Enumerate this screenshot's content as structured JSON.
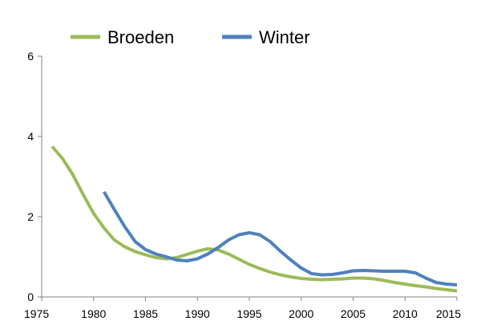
{
  "chart_data": {
    "type": "line",
    "title": "",
    "xlabel": "",
    "ylabel": "",
    "xlim": [
      1975,
      2015
    ],
    "ylim": [
      0,
      6
    ],
    "x_ticks": [
      "1975",
      "1980",
      "1985",
      "1990",
      "1995",
      "2000",
      "2005",
      "2010",
      "2015"
    ],
    "y_ticks": [
      "0",
      "2",
      "4",
      "6"
    ],
    "grid": false,
    "legend_position": "top",
    "series": [
      {
        "name": "Broeden",
        "color": "#9BBB59",
        "x": [
          1976,
          1977,
          1978,
          1979,
          1980,
          1981,
          1982,
          1983,
          1984,
          1985,
          1986,
          1987,
          1988,
          1989,
          1990,
          1991,
          1992,
          1993,
          1994,
          1995,
          1996,
          1997,
          1998,
          1999,
          2000,
          2001,
          2002,
          2003,
          2004,
          2005,
          2006,
          2007,
          2008,
          2009,
          2010,
          2011,
          2012,
          2013,
          2014,
          2015
        ],
        "y": [
          3.75,
          3.45,
          3.05,
          2.55,
          2.08,
          1.72,
          1.42,
          1.25,
          1.13,
          1.05,
          0.98,
          0.95,
          0.98,
          1.06,
          1.14,
          1.2,
          1.17,
          1.07,
          0.94,
          0.81,
          0.71,
          0.62,
          0.55,
          0.5,
          0.46,
          0.44,
          0.43,
          0.44,
          0.45,
          0.47,
          0.47,
          0.45,
          0.41,
          0.36,
          0.32,
          0.28,
          0.25,
          0.21,
          0.18,
          0.15
        ]
      },
      {
        "name": "Winter",
        "color": "#4F81BD",
        "x": [
          1981,
          1982,
          1983,
          1984,
          1985,
          1986,
          1987,
          1988,
          1989,
          1990,
          1991,
          1992,
          1993,
          1994,
          1995,
          1996,
          1997,
          1998,
          1999,
          2000,
          2001,
          2002,
          2003,
          2004,
          2005,
          2006,
          2007,
          2008,
          2009,
          2010,
          2011,
          2012,
          2013,
          2014,
          2015
        ],
        "y": [
          2.62,
          2.18,
          1.75,
          1.38,
          1.18,
          1.07,
          1.0,
          0.92,
          0.9,
          0.95,
          1.07,
          1.23,
          1.42,
          1.55,
          1.6,
          1.55,
          1.38,
          1.14,
          0.92,
          0.72,
          0.58,
          0.55,
          0.56,
          0.6,
          0.65,
          0.66,
          0.65,
          0.64,
          0.64,
          0.64,
          0.6,
          0.47,
          0.36,
          0.32,
          0.3
        ]
      }
    ]
  }
}
